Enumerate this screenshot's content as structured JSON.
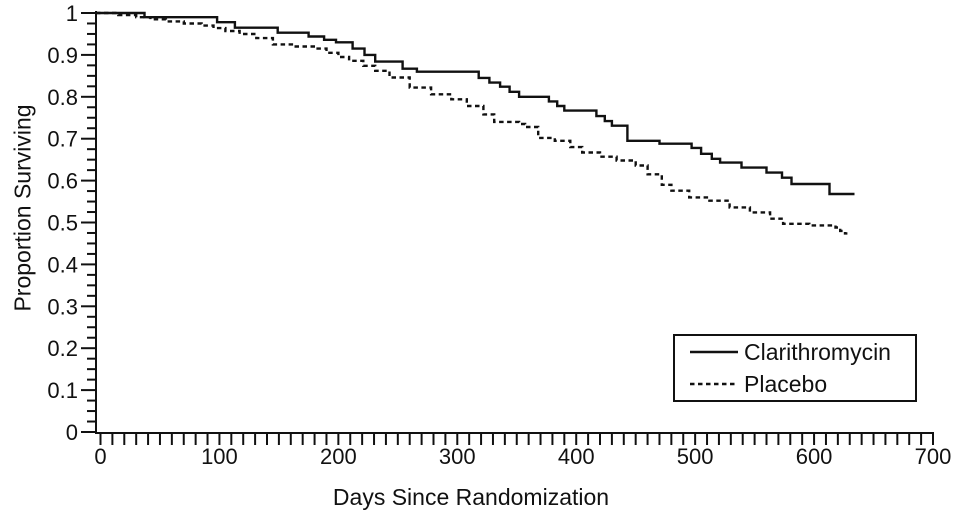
{
  "figure": {
    "background": "#ffffff",
    "line_color": "#111111"
  },
  "chart_data": {
    "type": "line",
    "subtype": "kaplan-meier-survival-step",
    "title": "",
    "xlabel": "Days Since Randomization",
    "ylabel": "Proportion Surviving",
    "xlim": [
      0,
      700
    ],
    "ylim": [
      0,
      1
    ],
    "grid": false,
    "x_ticks": [
      {
        "v": 0,
        "label": "0"
      },
      {
        "v": 100,
        "label": "100"
      },
      {
        "v": 200,
        "label": "200"
      },
      {
        "v": 300,
        "label": "300"
      },
      {
        "v": 400,
        "label": "400"
      },
      {
        "v": 500,
        "label": "500"
      },
      {
        "v": 600,
        "label": "600"
      },
      {
        "v": 700,
        "label": "700"
      }
    ],
    "y_ticks": [
      {
        "v": 1.0,
        "label": "1"
      },
      {
        "v": 0.9,
        "label": "0.9"
      },
      {
        "v": 0.8,
        "label": "0.8"
      },
      {
        "v": 0.7,
        "label": "0.7"
      },
      {
        "v": 0.6,
        "label": "0.6"
      },
      {
        "v": 0.5,
        "label": "0.5"
      },
      {
        "v": 0.4,
        "label": "0.4"
      },
      {
        "v": 0.3,
        "label": "0.3"
      },
      {
        "v": 0.2,
        "label": "0.2"
      },
      {
        "v": 0.1,
        "label": "0.1"
      },
      {
        "v": 0.0,
        "label": "0"
      }
    ],
    "x_minor_tick_step": 10,
    "y_minor_tick_step": 0.025,
    "legend": {
      "position": "lower-right",
      "border": true,
      "entries": [
        {
          "label": "Clarithromycin",
          "line_style": "solid"
        },
        {
          "label": "Placebo",
          "line_style": "dashed"
        }
      ]
    },
    "series": [
      {
        "name": "Clarithromycin",
        "line_style": "solid",
        "color": "#111111",
        "end_day": 634,
        "points": [
          [
            0,
            1.0
          ],
          [
            37,
            0.99
          ],
          [
            98,
            0.978
          ],
          [
            113,
            0.965
          ],
          [
            149,
            0.953
          ],
          [
            175,
            0.944
          ],
          [
            188,
            0.936
          ],
          [
            198,
            0.93
          ],
          [
            212,
            0.915
          ],
          [
            222,
            0.9
          ],
          [
            231,
            0.884
          ],
          [
            254,
            0.867
          ],
          [
            266,
            0.86
          ],
          [
            318,
            0.845
          ],
          [
            327,
            0.834
          ],
          [
            336,
            0.824
          ],
          [
            344,
            0.812
          ],
          [
            352,
            0.8
          ],
          [
            377,
            0.789
          ],
          [
            384,
            0.778
          ],
          [
            390,
            0.767
          ],
          [
            417,
            0.754
          ],
          [
            424,
            0.742
          ],
          [
            430,
            0.731
          ],
          [
            443,
            0.695
          ],
          [
            470,
            0.688
          ],
          [
            497,
            0.678
          ],
          [
            505,
            0.664
          ],
          [
            514,
            0.652
          ],
          [
            521,
            0.643
          ],
          [
            539,
            0.631
          ],
          [
            560,
            0.619
          ],
          [
            573,
            0.607
          ],
          [
            581,
            0.592
          ],
          [
            613,
            0.568
          ]
        ]
      },
      {
        "name": "Placebo",
        "line_style": "dashed",
        "color": "#111111",
        "end_day": 628,
        "points": [
          [
            0,
            1.0
          ],
          [
            15,
            0.995
          ],
          [
            30,
            0.99
          ],
          [
            42,
            0.985
          ],
          [
            55,
            0.98
          ],
          [
            70,
            0.975
          ],
          [
            85,
            0.97
          ],
          [
            95,
            0.964
          ],
          [
            105,
            0.957
          ],
          [
            117,
            0.95
          ],
          [
            131,
            0.94
          ],
          [
            145,
            0.925
          ],
          [
            163,
            0.92
          ],
          [
            181,
            0.915
          ],
          [
            190,
            0.905
          ],
          [
            200,
            0.895
          ],
          [
            209,
            0.886
          ],
          [
            221,
            0.874
          ],
          [
            231,
            0.862
          ],
          [
            243,
            0.846
          ],
          [
            260,
            0.822
          ],
          [
            278,
            0.806
          ],
          [
            295,
            0.794
          ],
          [
            308,
            0.778
          ],
          [
            322,
            0.758
          ],
          [
            331,
            0.74
          ],
          [
            352,
            0.735
          ],
          [
            357,
            0.728
          ],
          [
            368,
            0.702
          ],
          [
            382,
            0.695
          ],
          [
            395,
            0.68
          ],
          [
            405,
            0.667
          ],
          [
            420,
            0.657
          ],
          [
            434,
            0.648
          ],
          [
            450,
            0.636
          ],
          [
            460,
            0.615
          ],
          [
            472,
            0.59
          ],
          [
            480,
            0.576
          ],
          [
            495,
            0.56
          ],
          [
            512,
            0.552
          ],
          [
            529,
            0.536
          ],
          [
            546,
            0.524
          ],
          [
            563,
            0.509
          ],
          [
            574,
            0.497
          ],
          [
            596,
            0.493
          ],
          [
            618,
            0.488
          ],
          [
            622,
            0.48
          ],
          [
            626,
            0.474
          ]
        ]
      }
    ]
  }
}
